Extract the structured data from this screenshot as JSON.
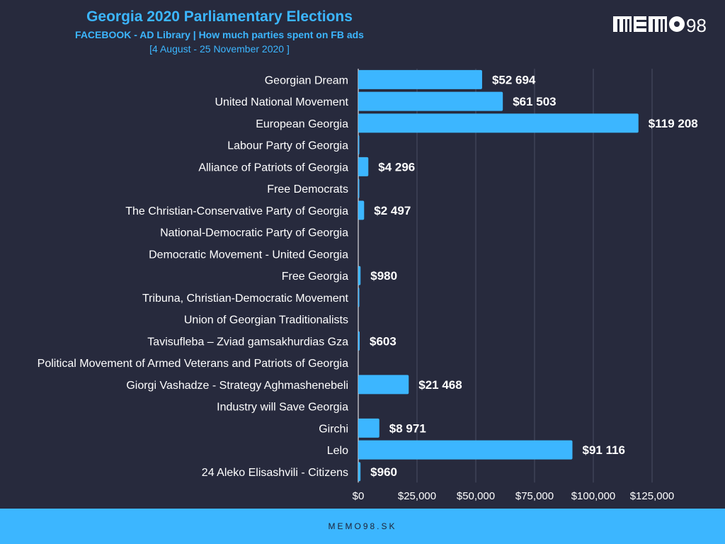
{
  "header": {
    "title": "Georgia 2020 Parliamentary Elections",
    "subtitle": "FACEBOOK - AD Library | How much parties spent on FB ads",
    "date_range": "[4 August - 25 November 2020 ]",
    "logo": "MEMO98"
  },
  "footer": {
    "text": "MEMO98.SK"
  },
  "colors": {
    "background": "#272a3d",
    "bar": "#3cb6ff",
    "label": "#ffffff",
    "footer": "#3cb6ff"
  },
  "chart_data": {
    "type": "bar",
    "orientation": "horizontal",
    "categories": [
      "Georgian Dream",
      "United National Movement",
      "European Georgia",
      "Labour Party of Georgia",
      "Alliance of Patriots of Georgia",
      "Free Democrats",
      "The Christian-Conservative Party of Georgia",
      "National-Democratic Party of Georgia",
      "Democratic Movement - United Georgia",
      "Free Georgia",
      "Tribuna, Christian-Democratic Movement",
      "Union of Georgian Traditionalists",
      "Tavisufleba – Zviad gamsakhurdias Gza",
      "Political Movement of Armed Veterans and Patriots of Georgia",
      "Giorgi Vashadze - Strategy Aghmashenebeli",
      "Industry will Save Georgia",
      "Girchi",
      "Lelo",
      "24 Aleko Elisashvili - Citizens"
    ],
    "values": [
      52694,
      61503,
      119208,
      150,
      4296,
      150,
      2497,
      0,
      0,
      980,
      150,
      0,
      603,
      0,
      21468,
      0,
      8971,
      91116,
      960
    ],
    "data_labels": [
      "$52 694",
      "$61 503",
      "$119 208",
      "",
      "$4 296",
      "",
      "$2 497",
      "",
      "",
      "$980",
      "",
      "",
      "$603",
      "",
      "$21 468",
      "",
      "$8 971",
      "$91 116",
      "$960"
    ],
    "xlim": [
      0,
      125000
    ],
    "xticks": [
      0,
      25000,
      50000,
      75000,
      100000,
      125000
    ],
    "xtick_labels": [
      "$0",
      "$25,000",
      "$50,000",
      "$75,000",
      "$100,000",
      "$125,000"
    ],
    "grid": true,
    "legend": "none"
  }
}
